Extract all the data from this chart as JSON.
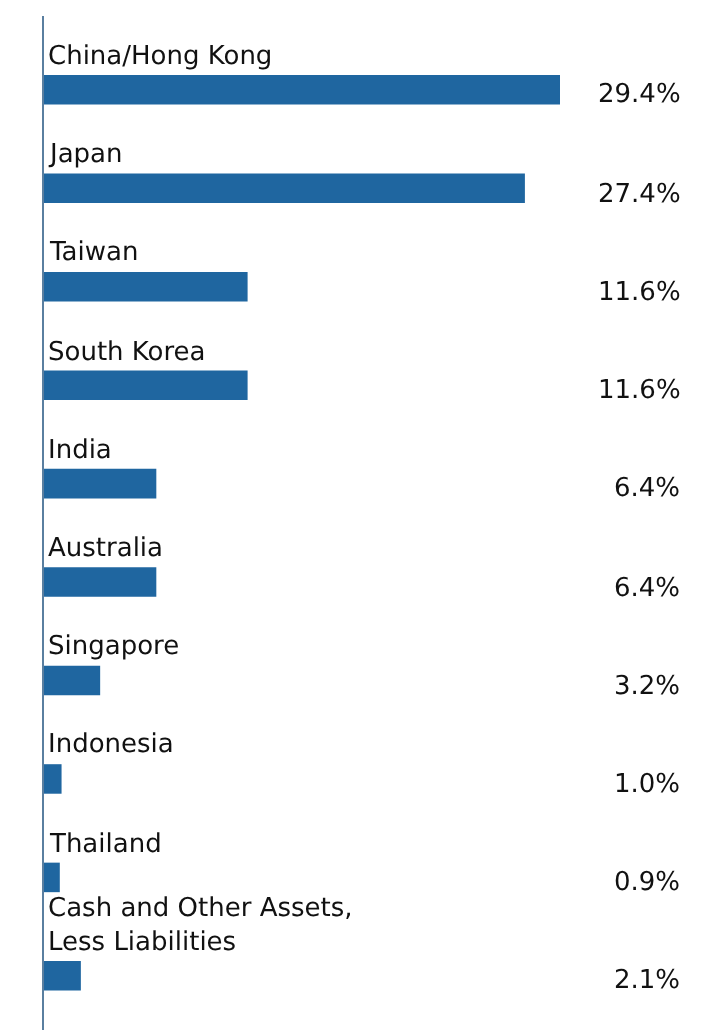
{
  "chart_data": {
    "type": "bar",
    "orientation": "horizontal",
    "color": "#1f66a0",
    "categories": [
      "China/Hong Kong",
      "Japan",
      "Taiwan",
      "South Korea",
      "India",
      "Australia",
      "Singapore",
      "Indonesia",
      "Thailand",
      "Cash and Other Assets,\nLess Liabilities"
    ],
    "values": [
      29.4,
      27.4,
      11.6,
      11.6,
      6.4,
      6.4,
      3.2,
      1.0,
      0.9,
      2.1
    ],
    "value_labels": [
      "29.4%",
      "27.4%",
      "11.6%",
      "11.6%",
      "6.4%",
      "6.4%",
      "3.2%",
      "1.0%",
      "0.9%",
      "2.1%"
    ]
  }
}
